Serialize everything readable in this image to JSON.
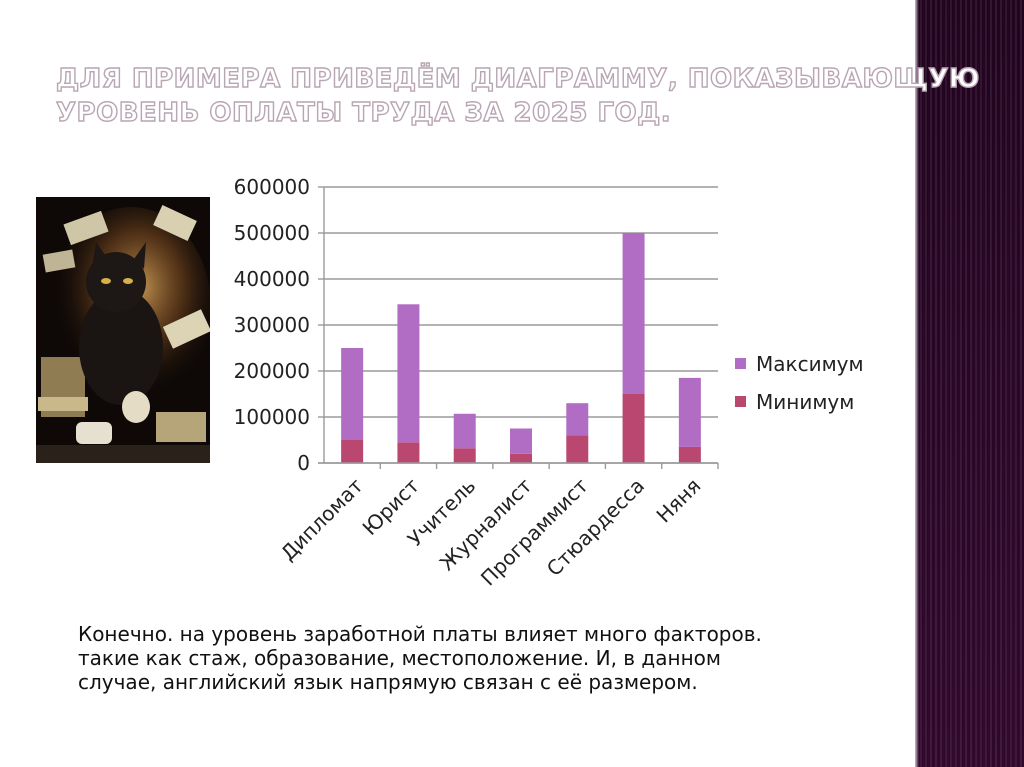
{
  "slide": {
    "title_lines": [
      "ДЛЯ ПРИМЕРА ПРИВЕДЁМ ДИАГРАММУ, ПОКАЗЫВАЮЩУЮ",
      "УРОВЕНЬ ОПЛАТЫ ТРУДА ЗА 2025 ГОД."
    ],
    "body_lines": [
      "Конечно. на уровень заработной платы влияет много факторов.",
      "такие как стаж, образование, местоположение. И, в данном",
      "случае, английский язык напрямую связан с её размером."
    ],
    "accent_color": "#6b2c67"
  },
  "chart_data": {
    "type": "bar",
    "stacked": true,
    "categories": [
      "Дипломат",
      "Юрист",
      "Учитель",
      "Журналист",
      "Программист",
      "Стюардесса",
      "Няня"
    ],
    "series": [
      {
        "name": "Минимум",
        "color": "#b9476f",
        "values": [
          50000,
          45000,
          32000,
          20000,
          60000,
          150000,
          35000
        ]
      },
      {
        "name": "Максимум",
        "color": "#b16cc3",
        "values": [
          200000,
          300000,
          75000,
          55000,
          70000,
          350000,
          150000
        ]
      }
    ],
    "ylim": [
      0,
      600000
    ],
    "yticks": [
      "0",
      "100000",
      "200000",
      "300000",
      "400000",
      "500000",
      "600000"
    ],
    "legend_order": [
      "Максимум",
      "Минимум"
    ],
    "legend_position": "right",
    "grid": true
  }
}
